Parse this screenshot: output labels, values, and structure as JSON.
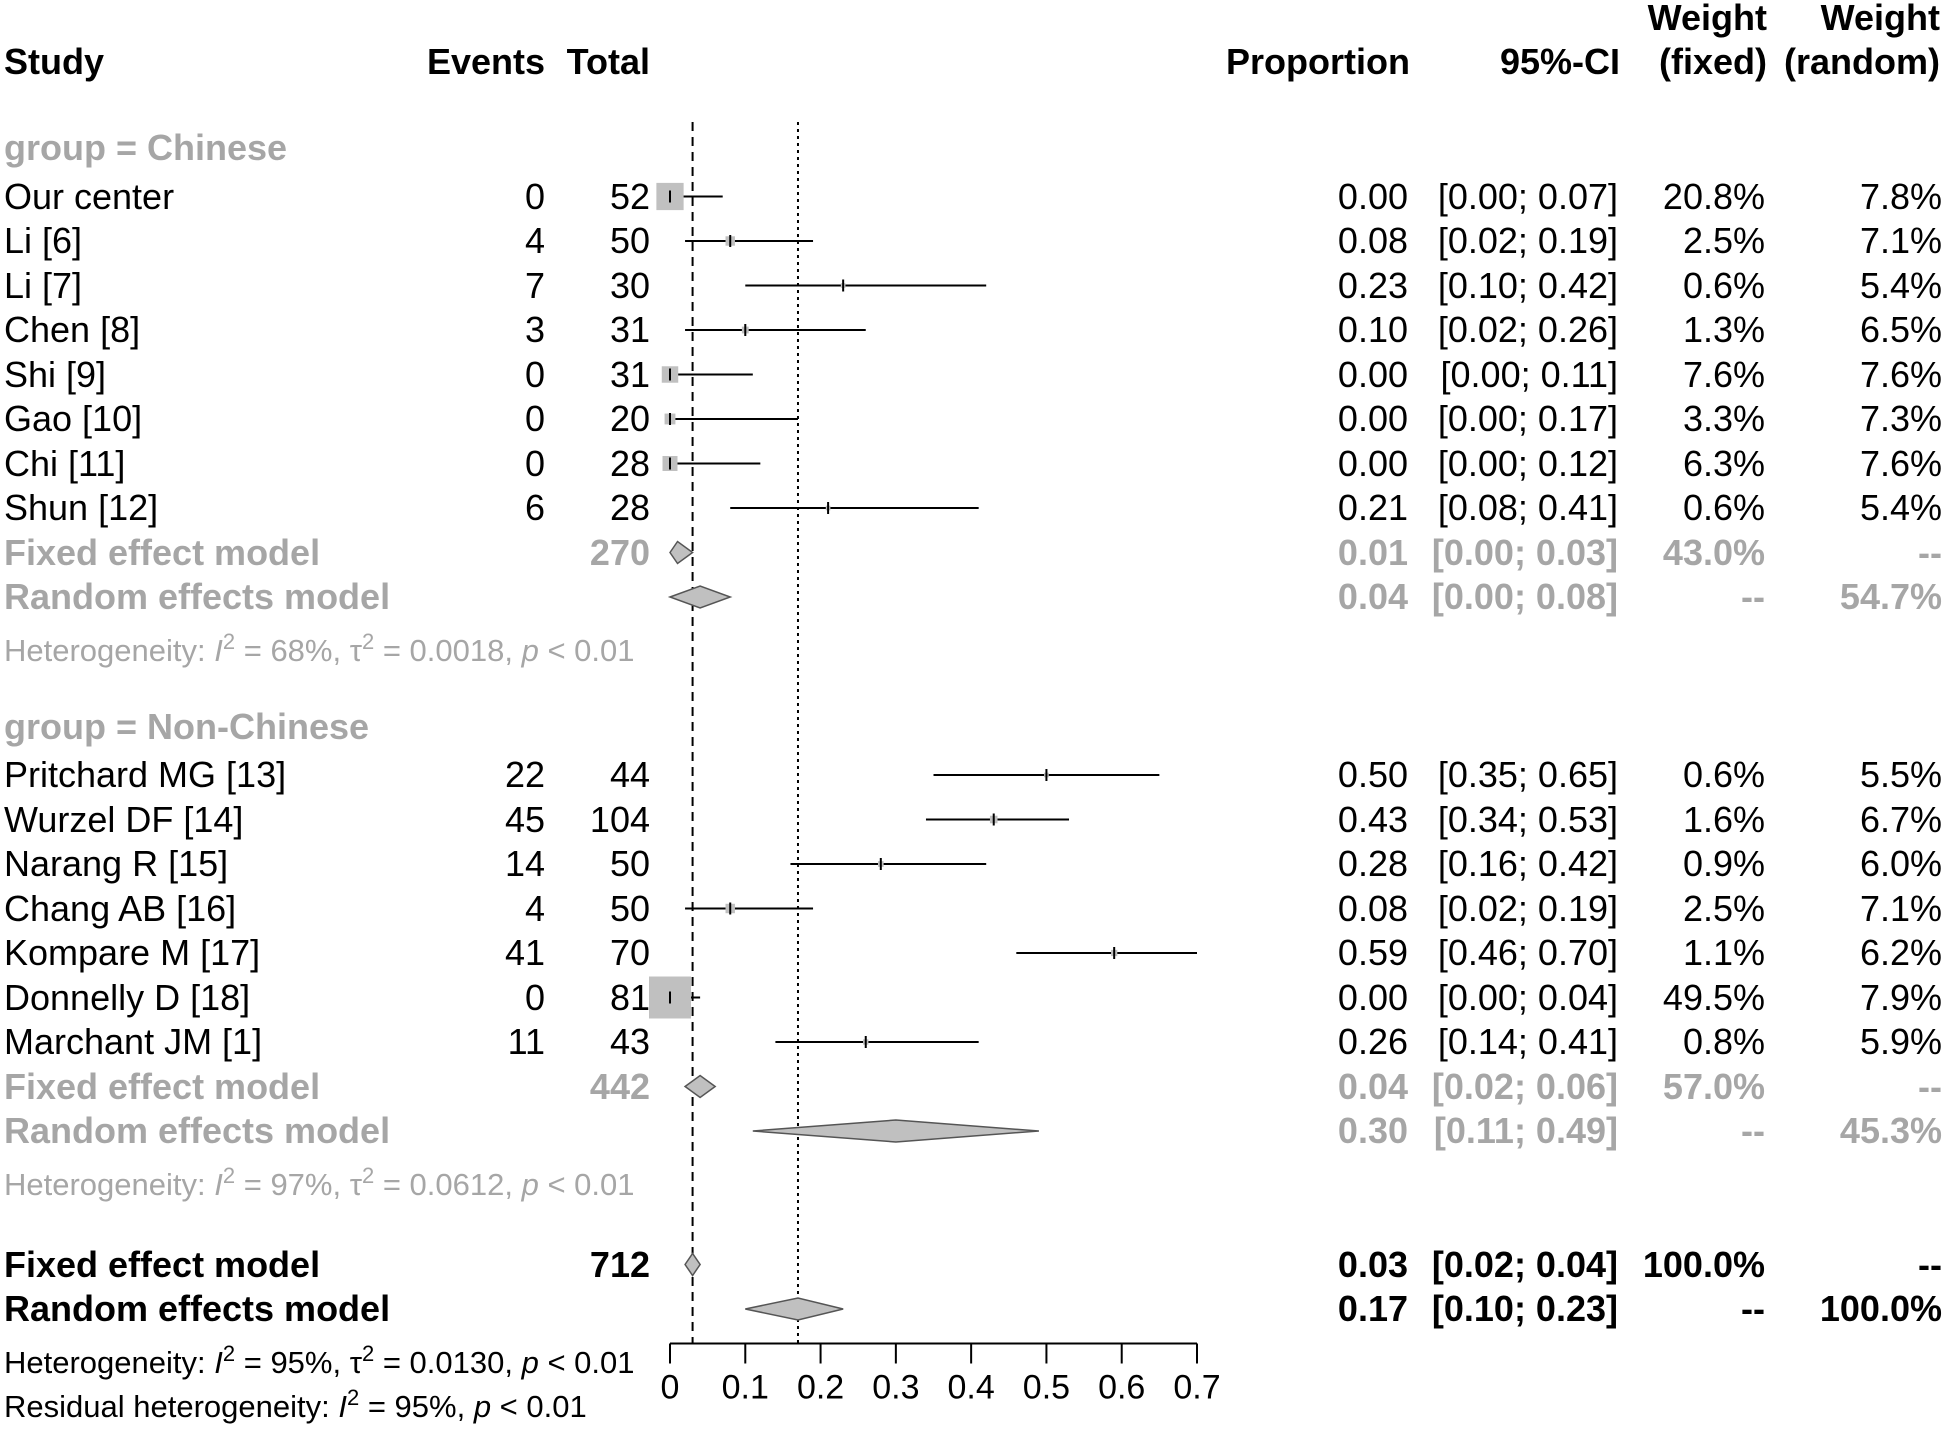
{
  "chart_data": {
    "type": "forest",
    "headers": {
      "study": "Study",
      "events": "Events",
      "total": "Total",
      "proportion": "Proportion",
      "ci": "95%-CI",
      "weight_word": "Weight",
      "fixed": "(fixed)",
      "random": "(random)"
    },
    "x_axis": {
      "range": [
        0,
        0.7
      ],
      "ticks": [
        0,
        0.1,
        0.2,
        0.3,
        0.4,
        0.5,
        0.6,
        0.7
      ],
      "tick_labels": [
        "0",
        "0.1",
        "0.2",
        "0.3",
        "0.4",
        "0.5",
        "0.6",
        "0.7"
      ],
      "reference_lines": {
        "fixed": 0.03,
        "random": 0.17
      }
    },
    "groups": [
      {
        "label": "group = Chinese",
        "studies": [
          {
            "study": "Our center",
            "events": "0",
            "total": "52",
            "prop": "0.00",
            "ci": "[0.00; 0.07]",
            "wf": "20.8%",
            "wr": "7.8%",
            "est": 0.0,
            "lo": 0.0,
            "hi": 0.07,
            "weight": 20.8
          },
          {
            "study": "Li [6]",
            "events": "4",
            "total": "50",
            "prop": "0.08",
            "ci": "[0.02; 0.19]",
            "wf": "2.5%",
            "wr": "7.1%",
            "est": 0.08,
            "lo": 0.02,
            "hi": 0.19,
            "weight": 2.5
          },
          {
            "study": "Li [7]",
            "events": "7",
            "total": "30",
            "prop": "0.23",
            "ci": "[0.10; 0.42]",
            "wf": "0.6%",
            "wr": "5.4%",
            "est": 0.23,
            "lo": 0.1,
            "hi": 0.42,
            "weight": 0.6
          },
          {
            "study": "Chen [8]",
            "events": "3",
            "total": "31",
            "prop": "0.10",
            "ci": "[0.02; 0.26]",
            "wf": "1.3%",
            "wr": "6.5%",
            "est": 0.1,
            "lo": 0.02,
            "hi": 0.26,
            "weight": 1.3
          },
          {
            "study": "Shi [9]",
            "events": "0",
            "total": "31",
            "prop": "0.00",
            "ci": "[0.00; 0.11]",
            "wf": "7.6%",
            "wr": "7.6%",
            "est": 0.0,
            "lo": 0.0,
            "hi": 0.11,
            "weight": 7.6
          },
          {
            "study": "Gao [10]",
            "events": "0",
            "total": "20",
            "prop": "0.00",
            "ci": "[0.00; 0.17]",
            "wf": "3.3%",
            "wr": "7.3%",
            "est": 0.0,
            "lo": 0.0,
            "hi": 0.17,
            "weight": 3.3
          },
          {
            "study": "Chi [11]",
            "events": "0",
            "total": "28",
            "prop": "0.00",
            "ci": "[0.00; 0.12]",
            "wf": "6.3%",
            "wr": "7.6%",
            "est": 0.0,
            "lo": 0.0,
            "hi": 0.12,
            "weight": 6.3
          },
          {
            "study": "Shun [12]",
            "events": "6",
            "total": "28",
            "prop": "0.21",
            "ci": "[0.08; 0.41]",
            "wf": "0.6%",
            "wr": "5.4%",
            "est": 0.21,
            "lo": 0.08,
            "hi": 0.41,
            "weight": 0.6
          }
        ],
        "fixed": {
          "label": "Fixed effect model",
          "total": "270",
          "prop": "0.01",
          "ci": "[0.00; 0.03]",
          "wf": "43.0%",
          "wr": "--",
          "est": 0.01,
          "lo": 0.0,
          "hi": 0.03
        },
        "random": {
          "label": "Random effects model",
          "prop": "0.04",
          "ci": "[0.00; 0.08]",
          "wf": "--",
          "wr": "54.7%",
          "est": 0.04,
          "lo": 0.0,
          "hi": 0.08
        },
        "heterogeneity": {
          "prefix": "Heterogeneity: ",
          "I2": "68%",
          "tau2": "0.0018",
          "p": "< 0.01"
        }
      },
      {
        "label": "group = Non-Chinese",
        "studies": [
          {
            "study": "Pritchard MG [13]",
            "events": "22",
            "total": "44",
            "prop": "0.50",
            "ci": "[0.35; 0.65]",
            "wf": "0.6%",
            "wr": "5.5%",
            "est": 0.5,
            "lo": 0.35,
            "hi": 0.65,
            "weight": 0.6
          },
          {
            "study": "Wurzel DF [14]",
            "events": "45",
            "total": "104",
            "prop": "0.43",
            "ci": "[0.34; 0.53]",
            "wf": "1.6%",
            "wr": "6.7%",
            "est": 0.43,
            "lo": 0.34,
            "hi": 0.53,
            "weight": 1.6
          },
          {
            "study": "Narang R [15]",
            "events": "14",
            "total": "50",
            "prop": "0.28",
            "ci": "[0.16; 0.42]",
            "wf": "0.9%",
            "wr": "6.0%",
            "est": 0.28,
            "lo": 0.16,
            "hi": 0.42,
            "weight": 0.9
          },
          {
            "study": "Chang AB [16]",
            "events": "4",
            "total": "50",
            "prop": "0.08",
            "ci": "[0.02; 0.19]",
            "wf": "2.5%",
            "wr": "7.1%",
            "est": 0.08,
            "lo": 0.02,
            "hi": 0.19,
            "weight": 2.5
          },
          {
            "study": "Kompare M [17]",
            "events": "41",
            "total": "70",
            "prop": "0.59",
            "ci": "[0.46; 0.70]",
            "wf": "1.1%",
            "wr": "6.2%",
            "est": 0.59,
            "lo": 0.46,
            "hi": 0.7,
            "weight": 1.1
          },
          {
            "study": "Donnelly D [18]",
            "events": "0",
            "total": "81",
            "prop": "0.00",
            "ci": "[0.00; 0.04]",
            "wf": "49.5%",
            "wr": "7.9%",
            "est": 0.0,
            "lo": 0.0,
            "hi": 0.04,
            "weight": 49.5
          },
          {
            "study": "Marchant JM [1]",
            "events": "11",
            "total": "43",
            "prop": "0.26",
            "ci": "[0.14; 0.41]",
            "wf": "0.8%",
            "wr": "5.9%",
            "est": 0.26,
            "lo": 0.14,
            "hi": 0.41,
            "weight": 0.8
          }
        ],
        "fixed": {
          "label": "Fixed effect model",
          "total": "442",
          "prop": "0.04",
          "ci": "[0.02; 0.06]",
          "wf": "57.0%",
          "wr": "--",
          "est": 0.04,
          "lo": 0.02,
          "hi": 0.06
        },
        "random": {
          "label": "Random effects model",
          "prop": "0.30",
          "ci": "[0.11; 0.49]",
          "wf": "--",
          "wr": "45.3%",
          "est": 0.3,
          "lo": 0.11,
          "hi": 0.49
        },
        "heterogeneity": {
          "prefix": "Heterogeneity: ",
          "I2": "97%",
          "tau2": "0.0612",
          "p": "< 0.01"
        }
      }
    ],
    "overall": {
      "fixed": {
        "label": "Fixed effect model",
        "total": "712",
        "prop": "0.03",
        "ci": "[0.02; 0.04]",
        "wf": "100.0%",
        "wr": "--",
        "est": 0.03,
        "lo": 0.02,
        "hi": 0.04
      },
      "random": {
        "label": "Random effects model",
        "prop": "0.17",
        "ci": "[0.10; 0.23]",
        "wf": "--",
        "wr": "100.0%",
        "est": 0.17,
        "lo": 0.1,
        "hi": 0.23
      },
      "heterogeneity": {
        "prefix": "Heterogeneity: ",
        "I2": "95%",
        "tau2": "0.0130",
        "p": "< 0.01"
      },
      "residual": {
        "prefix": "Residual heterogeneity: ",
        "I2": "95%",
        "p": "< 0.01"
      }
    },
    "colors": {
      "line": "#000000",
      "box": "#c0c0c0",
      "diamond": "#c0c0c0",
      "subgroup_text": "#a6a6a6"
    }
  }
}
